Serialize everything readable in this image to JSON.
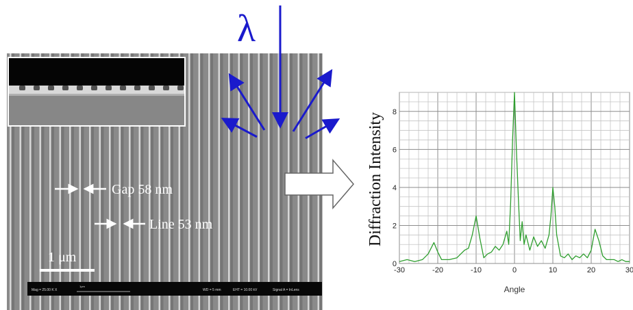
{
  "sem": {
    "labels": {
      "gap": "Gap 58 nm",
      "line": "Line 53 nm",
      "scale_bar": "1 μm"
    },
    "footer": {
      "left": "Mag = 25.00 K X",
      "scale": "1μm",
      "wd": "WD = 5 mm",
      "eht": "EHT = 10.00 kV",
      "signal": "Signal A = InLens"
    }
  },
  "illumination": {
    "symbol": "λ",
    "colors": {
      "arrows": "#1a1acc",
      "incident": "#1a1acc"
    }
  },
  "chart_data": {
    "type": "line",
    "xlabel": "Angle",
    "ylabel": "Diffraction Intensity",
    "xlim": [
      -30,
      30
    ],
    "ylim": [
      0,
      9
    ],
    "xticks": [
      -30,
      -20,
      -10,
      0,
      10,
      20,
      30
    ],
    "yticks": [
      0,
      2,
      4,
      6,
      8
    ],
    "ytick_labels": [
      "0",
      "2",
      "4",
      "6",
      "8"
    ],
    "grid": true,
    "line_color": "#2e9e2e",
    "series": [
      {
        "x": [
          -30,
          -28,
          -26,
          -24,
          -22.5,
          -21,
          -20,
          -19,
          -17,
          -15,
          -14,
          -13,
          -12,
          -11,
          -10,
          -9,
          -8,
          -7,
          -6,
          -5,
          -4,
          -3,
          -2,
          -1.5,
          -1,
          -0.5,
          0,
          0.5,
          1,
          1.5,
          2,
          2.5,
          3,
          4,
          5,
          6,
          7,
          8,
          9,
          9.5,
          10,
          10.5,
          11,
          12,
          13,
          14,
          15,
          16,
          17,
          18,
          19,
          20,
          21,
          22,
          23,
          24,
          25,
          26,
          27,
          28,
          29,
          30
        ],
        "y": [
          0.1,
          0.2,
          0.1,
          0.2,
          0.5,
          1.1,
          0.6,
          0.2,
          0.2,
          0.3,
          0.5,
          0.7,
          0.8,
          1.5,
          2.5,
          1.3,
          0.3,
          0.5,
          0.6,
          0.9,
          0.7,
          1.0,
          1.7,
          1.0,
          3.2,
          6.5,
          9.0,
          6.0,
          3.5,
          1.2,
          2.2,
          1.0,
          1.5,
          0.7,
          1.4,
          0.9,
          1.2,
          0.8,
          1.5,
          2.5,
          4.0,
          3.0,
          1.5,
          0.4,
          0.3,
          0.5,
          0.2,
          0.4,
          0.3,
          0.5,
          0.3,
          0.7,
          1.8,
          1.2,
          0.4,
          0.2,
          0.2,
          0.2,
          0.1,
          0.2,
          0.1,
          0.1
        ]
      }
    ]
  }
}
